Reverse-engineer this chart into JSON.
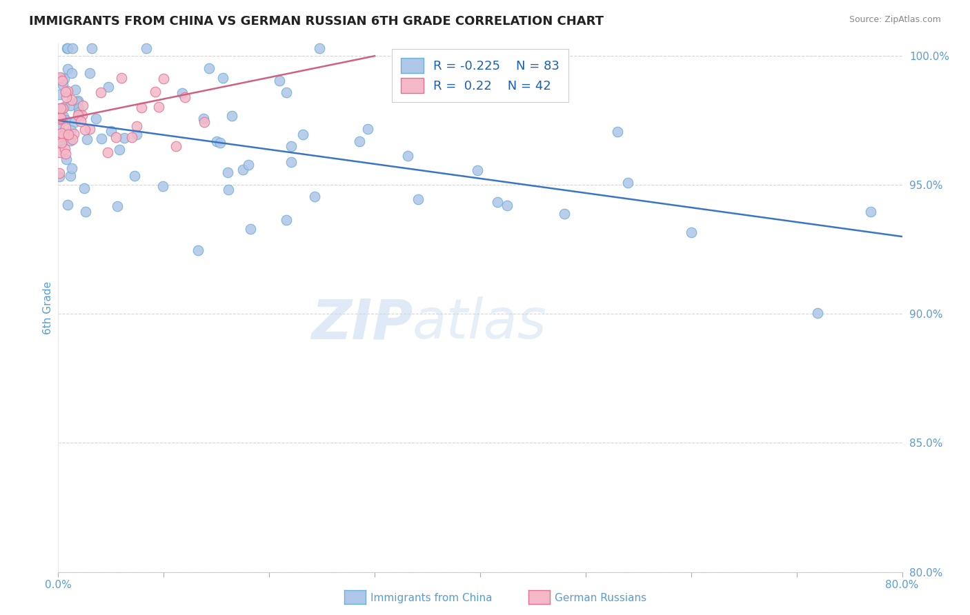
{
  "title": "IMMIGRANTS FROM CHINA VS GERMAN RUSSIAN 6TH GRADE CORRELATION CHART",
  "source_text": "Source: ZipAtlas.com",
  "ylabel": "6th Grade",
  "xlim": [
    0.0,
    0.8
  ],
  "ylim": [
    0.8,
    1.005
  ],
  "xticks": [
    0.0,
    0.1,
    0.2,
    0.3,
    0.4,
    0.5,
    0.6,
    0.7,
    0.8
  ],
  "xticklabels": [
    "0.0%",
    "",
    "",
    "",
    "",
    "",
    "",
    "",
    "80.0%"
  ],
  "yticks": [
    0.8,
    0.85,
    0.9,
    0.95,
    1.0
  ],
  "yticklabels": [
    "80.0%",
    "85.0%",
    "90.0%",
    "95.0%",
    "100.0%"
  ],
  "china_color": "#aec6e8",
  "german_color": "#f4b8c8",
  "china_edge_color": "#6baed6",
  "german_edge_color": "#e07090",
  "trendline_china_color": "#3a75c4",
  "trendline_german_color": "#d06080",
  "china_R": -0.225,
  "china_N": 83,
  "german_R": 0.22,
  "german_N": 42,
  "watermark_zip": "ZIP",
  "watermark_atlas": "atlas",
  "background_color": "#ffffff",
  "grid_color": "#aaaaaa",
  "axis_color": "#5b9bd5",
  "legend_text_color": "#1a5fb4",
  "title_color": "#222222",
  "source_color": "#888888"
}
